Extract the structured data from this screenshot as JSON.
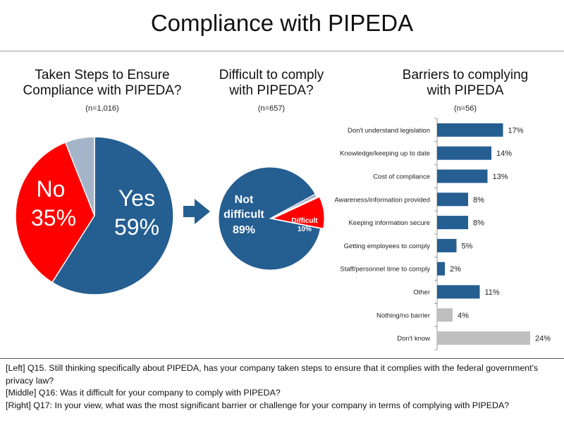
{
  "title": "Compliance with PIPEDA",
  "left": {
    "subtitle_line1": "Taken Steps to Ensure",
    "subtitle_line2": "Compliance with PIPEDA?",
    "n": "(n=1,016)"
  },
  "middle": {
    "subtitle_line1": "Difficult to comply",
    "subtitle_line2": "with PIPEDA?",
    "n": "(n=657)"
  },
  "right": {
    "subtitle_line1": "Barriers to complying",
    "subtitle_line2": "with PIPEDA",
    "n": "(n=56)"
  },
  "footnotes": {
    "left": "[Left] Q15. Still thinking specifically about PIPEDA, has your company taken steps to ensure that it complies with the federal government's privacy law?",
    "middle": "[Middle] Q16: Was it difficult for your company to comply with PIPEDA?",
    "right": "[Right] Q17: In your view, what was the most significant barrier or challenge for your company in terms of complying with PIPEDA?"
  },
  "colors": {
    "blue": "#255e91",
    "red": "#ff0000",
    "grey": "#a5b5c9",
    "bar_grey": "#bfbfbf",
    "arrow": "#255e91"
  },
  "chart_data": [
    {
      "type": "pie",
      "title": "Taken Steps to Ensure Compliance with PIPEDA?",
      "slices": [
        {
          "label": "Yes",
          "value": 59,
          "value_label": "59%",
          "color": "#255e91"
        },
        {
          "label": "No",
          "value": 35,
          "value_label": "35%",
          "color": "#ff0000"
        },
        {
          "label": "",
          "value": 6,
          "value_label": "",
          "color": "#a5b5c9"
        }
      ]
    },
    {
      "type": "pie",
      "title": "Difficult to comply with PIPEDA?",
      "slices": [
        {
          "label": "Not difficult",
          "value": 89,
          "value_label": "89%",
          "color": "#255e91"
        },
        {
          "label": "Difficult",
          "value": 10,
          "value_label": "10%",
          "color": "#ff0000"
        },
        {
          "label": "",
          "value": 1,
          "value_label": "",
          "color": "#a5b5c9"
        }
      ]
    },
    {
      "type": "bar",
      "orientation": "horizontal",
      "title": "Barriers to complying with PIPEDA",
      "categories": [
        "Don't understand legislation",
        "Knowledge/keeping up to date",
        "Cost of compliance",
        "Awareness/information provided",
        "Keeping information secure",
        "Getting employees to comply",
        "Staff/personnel time to comply",
        "Other",
        "Nothing/no barrier",
        "Don't know"
      ],
      "values": [
        17,
        14,
        13,
        8,
        8,
        5,
        2,
        11,
        4,
        24
      ],
      "value_labels": [
        "17%",
        "14%",
        "13%",
        "8%",
        "8%",
        "5%",
        "2%",
        "11%",
        "4%",
        "24%"
      ],
      "colors": [
        "#255e91",
        "#255e91",
        "#255e91",
        "#255e91",
        "#255e91",
        "#255e91",
        "#255e91",
        "#255e91",
        "#bfbfbf",
        "#bfbfbf"
      ],
      "xlim": [
        0,
        24
      ]
    }
  ]
}
